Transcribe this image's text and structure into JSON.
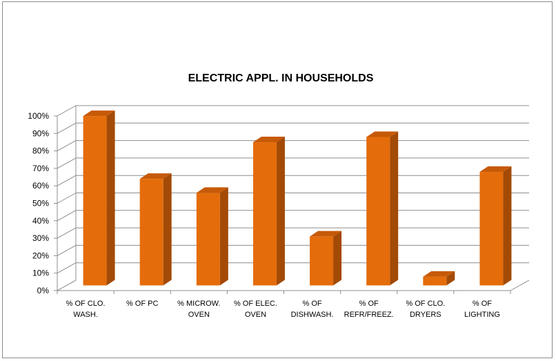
{
  "chart_data": {
    "type": "bar",
    "title": "ELECTRIC APPL. IN HOUSEHOLDS",
    "xlabel": "",
    "ylabel": "",
    "ylim": [
      0,
      100
    ],
    "yticks": [
      "0%",
      "10%",
      "20%",
      "30%",
      "40%",
      "50%",
      "60%",
      "70%",
      "80%",
      "90%",
      "100%"
    ],
    "grid": true,
    "legend": "none",
    "style": "3d-column",
    "categories": [
      [
        "% OF CLO.",
        "WASH."
      ],
      [
        "% OF PC"
      ],
      [
        "% MICROW.",
        "OVEN"
      ],
      [
        "% OF ELEC.",
        "OVEN"
      ],
      [
        "% OF",
        "DISHWASH."
      ],
      [
        "% OF",
        "REFR/FREEZ."
      ],
      [
        "% OF CLO.",
        "DRYERS"
      ],
      [
        "% OF",
        "LIGHTING"
      ]
    ],
    "values": [
      97,
      61,
      53,
      82,
      28,
      85,
      5,
      65
    ],
    "colors": {
      "front": "#e46c0a",
      "side": "#a34a06",
      "top": "#c65a08",
      "grid": "#8c8c8c"
    }
  }
}
